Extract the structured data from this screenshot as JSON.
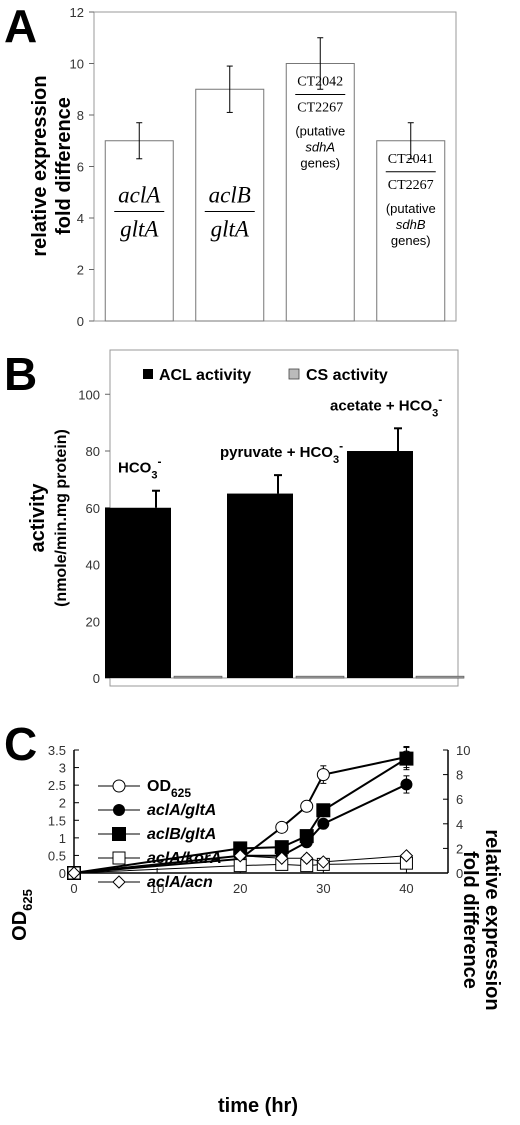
{
  "panels": {
    "a": "A",
    "b": "B",
    "c": "C"
  },
  "chart_data": [
    {
      "type": "bar",
      "panel": "A",
      "ylabel_lines": [
        "relative expression",
        "fold difference"
      ],
      "ylim": [
        0,
        12
      ],
      "yticks": [
        "0",
        "2",
        "4",
        "6",
        "8",
        "10",
        "12"
      ],
      "categories": [
        "aclA/gltA",
        "aclB/gltA",
        "CT2042/CT2267",
        "CT2041/CT2267"
      ],
      "values": [
        7,
        9,
        10,
        7
      ],
      "error": [
        0.7,
        0.9,
        1.0,
        0.7
      ],
      "bar_labels": [
        {
          "numerator": "aclA",
          "denominator": "gltA",
          "note": []
        },
        {
          "numerator": "aclB",
          "denominator": "gltA",
          "note": []
        },
        {
          "numerator": "CT2042",
          "denominator": "CT2267",
          "note": [
            "(putative",
            "sdhA",
            "genes)"
          ]
        },
        {
          "numerator": "CT2041",
          "denominator": "CT2267",
          "note": [
            "(putative",
            "sdhB",
            "genes)"
          ]
        }
      ]
    },
    {
      "type": "bar",
      "panel": "B",
      "ylabel_lines": [
        "activity",
        "(nmole/min.mg protein)"
      ],
      "ylim": [
        0,
        100
      ],
      "yticks": [
        "0",
        "20",
        "40",
        "60",
        "80",
        "100"
      ],
      "categories": [
        "HCO3-",
        "pyruvate + HCO3-",
        "acetate + HCO3-"
      ],
      "category_labels": [
        {
          "base": "HCO",
          "sub": "3",
          "sup": "-"
        },
        {
          "base": "pyruvate + HCO",
          "sub": "3",
          "sup": "-"
        },
        {
          "base": "acetate + HCO",
          "sub": "3",
          "sup": "-"
        }
      ],
      "series": [
        {
          "name": "ACL activity",
          "values": [
            60,
            65,
            80
          ],
          "error": [
            6,
            6.5,
            8
          ],
          "color": "#000000"
        },
        {
          "name": "CS activity",
          "values": [
            0.3,
            0.3,
            0.3
          ],
          "error": [
            0,
            0,
            0
          ],
          "color": "#999999"
        }
      ],
      "legend": "top"
    },
    {
      "type": "line",
      "panel": "C",
      "xlabel": "time (hr)",
      "xlim": [
        0,
        45
      ],
      "xticks": [
        "0",
        "10",
        "20",
        "30",
        "40"
      ],
      "ylabel_left": {
        "base": "OD",
        "sub": "625"
      },
      "ylim_left": [
        0,
        3.5
      ],
      "yticks_left": [
        "0",
        "0.5",
        "1",
        "1.5",
        "2",
        "2.5",
        "3",
        "3.5"
      ],
      "ylabel_right_lines": [
        "relative expression",
        "fold difference"
      ],
      "ylim_right": [
        0,
        10
      ],
      "yticks_right": [
        "0",
        "2",
        "4",
        "6",
        "8",
        "10"
      ],
      "legend": "top-left",
      "series": [
        {
          "name": "OD",
          "name_sub": "625",
          "axis": "left",
          "marker": "open-circle",
          "x": [
            0,
            20,
            25,
            28,
            30,
            40
          ],
          "y": [
            0,
            0.4,
            1.3,
            1.9,
            2.8,
            3.3
          ],
          "error": [
            0,
            0.05,
            0.1,
            0.15,
            0.25,
            0.3
          ]
        },
        {
          "name": "aclA/gltA",
          "axis": "right",
          "marker": "filled-circle",
          "x": [
            0,
            20,
            25,
            28,
            30,
            40
          ],
          "y": [
            0,
            1.4,
            1.4,
            2.5,
            4,
            7.2
          ],
          "error": [
            0,
            0.3,
            0.3,
            0.3,
            0.4,
            0.7
          ]
        },
        {
          "name": "aclB/gltA",
          "axis": "right",
          "marker": "filled-square",
          "x": [
            0,
            20,
            25,
            28,
            30,
            40
          ],
          "y": [
            0,
            2,
            2.1,
            3,
            5.1,
            9.3
          ],
          "error": [
            0,
            0.2,
            0.3,
            0.4,
            0.5,
            0.9
          ]
        },
        {
          "name": "aclA/korA",
          "axis": "right",
          "marker": "open-square",
          "x": [
            0,
            20,
            25,
            28,
            30,
            40
          ],
          "y": [
            0,
            0.6,
            0.7,
            0.6,
            0.7,
            0.8
          ],
          "error": [
            0,
            0.2,
            0.2,
            0.2,
            0.2,
            0.2
          ]
        },
        {
          "name": "aclA/acn",
          "axis": "right",
          "marker": "open-diamond",
          "x": [
            0,
            20,
            25,
            28,
            30,
            40
          ],
          "y": [
            0,
            1.4,
            1.2,
            1.2,
            0.9,
            1.4
          ],
          "error": [
            0,
            0.2,
            0.2,
            0.3,
            0.2,
            0.2
          ]
        }
      ]
    }
  ]
}
